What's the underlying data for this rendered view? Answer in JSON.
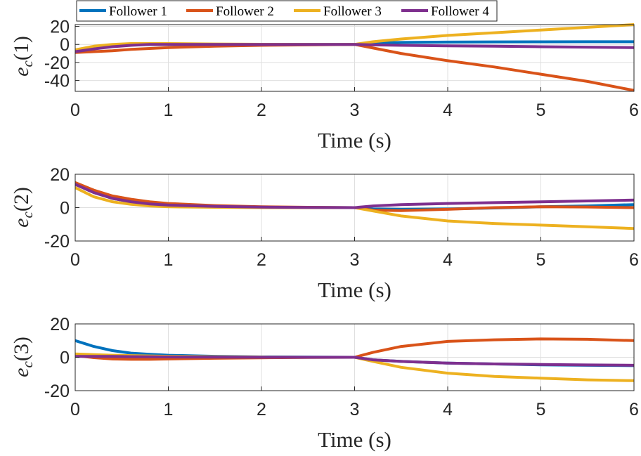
{
  "chart_data": [
    {
      "type": "line",
      "xlabel": "Time (s)",
      "ylabel": {
        "base": "e",
        "sub": "c",
        "arg": "(1)"
      },
      "xlim": [
        0,
        6
      ],
      "ylim": [
        -52,
        22
      ],
      "xticks": [
        "0",
        "1",
        "2",
        "3",
        "4",
        "5",
        "6"
      ],
      "yticks": [
        {
          "value": 20,
          "label": "20"
        },
        {
          "value": 0,
          "label": "0"
        },
        {
          "value": -20,
          "label": "-20"
        },
        {
          "value": -40,
          "label": "-40"
        }
      ],
      "grid": true,
      "series": [
        {
          "name": "Follower 1",
          "color": "#0072BD",
          "x": [
            0,
            0.2,
            0.4,
            0.6,
            0.8,
            1,
            1.5,
            2,
            2.5,
            3,
            3.2,
            3.5,
            4,
            4.5,
            5,
            5.5,
            6
          ],
          "y": [
            -7,
            -3.5,
            -1.5,
            -0.5,
            0,
            0,
            0,
            0,
            0,
            0,
            1.5,
            2.2,
            2.6,
            2.8,
            2.9,
            3,
            3
          ]
        },
        {
          "name": "Follower 2",
          "color": "#D95319",
          "x": [
            0,
            0.2,
            0.4,
            0.6,
            0.8,
            1,
            1.5,
            2,
            2.5,
            3,
            3.2,
            3.5,
            4,
            4.5,
            5,
            5.5,
            6
          ],
          "y": [
            -9,
            -8,
            -7,
            -5.5,
            -4.5,
            -3.5,
            -2,
            -1,
            -0.5,
            0,
            -4,
            -10,
            -18,
            -25,
            -33,
            -41,
            -51
          ]
        },
        {
          "name": "Follower 3",
          "color": "#EDB120",
          "x": [
            0,
            0.2,
            0.4,
            0.6,
            0.8,
            1,
            1.5,
            2,
            2.5,
            3,
            3.2,
            3.5,
            4,
            4.5,
            5,
            5.5,
            6
          ],
          "y": [
            -6,
            -2,
            0,
            1,
            1,
            1,
            0.5,
            0.2,
            0.1,
            0,
            3,
            6,
            10,
            13,
            16,
            19,
            22
          ]
        },
        {
          "name": "Follower 4",
          "color": "#7E2F8E",
          "x": [
            0,
            0.2,
            0.4,
            0.6,
            0.8,
            1,
            1.5,
            2,
            2.5,
            3,
            3.2,
            3.5,
            4,
            4.5,
            5,
            5.5,
            6
          ],
          "y": [
            -8,
            -5,
            -2.5,
            -1,
            0,
            0,
            0,
            0,
            0,
            0,
            -0.5,
            -1,
            -1.5,
            -2,
            -2.5,
            -3,
            -3.5
          ]
        }
      ]
    },
    {
      "type": "line",
      "xlabel": "Time (s)",
      "ylabel": {
        "base": "e",
        "sub": "c",
        "arg": "(2)"
      },
      "xlim": [
        0,
        6
      ],
      "ylim": [
        -20,
        20
      ],
      "xticks": [
        "0",
        "1",
        "2",
        "3",
        "4",
        "5",
        "6"
      ],
      "yticks": [
        {
          "value": 20,
          "label": "20"
        },
        {
          "value": 0,
          "label": "0"
        },
        {
          "value": -20,
          "label": "-20"
        }
      ],
      "grid": true,
      "series": [
        {
          "name": "Follower 1",
          "color": "#0072BD",
          "x": [
            0,
            0.2,
            0.4,
            0.6,
            0.8,
            1,
            1.5,
            2,
            2.5,
            3,
            3.2,
            3.5,
            4,
            4.5,
            5,
            5.5,
            6
          ],
          "y": [
            14,
            9,
            5.5,
            3.5,
            2,
            1.5,
            0.6,
            0.3,
            0.1,
            0,
            -0.8,
            -1,
            -0.8,
            -0.2,
            0.5,
            1,
            1.8
          ]
        },
        {
          "name": "Follower 2",
          "color": "#D95319",
          "x": [
            0,
            0.2,
            0.4,
            0.6,
            0.8,
            1,
            1.5,
            2,
            2.5,
            3,
            3.2,
            3.5,
            4,
            4.5,
            5,
            5.5,
            6
          ],
          "y": [
            15,
            10.5,
            7,
            5,
            3.5,
            2.5,
            1.2,
            0.5,
            0.2,
            0,
            -1.5,
            -1.8,
            -1,
            0,
            0.5,
            0.4,
            0
          ]
        },
        {
          "name": "Follower 3",
          "color": "#EDB120",
          "x": [
            0,
            0.2,
            0.4,
            0.6,
            0.8,
            1,
            1.5,
            2,
            2.5,
            3,
            3.2,
            3.5,
            4,
            4.5,
            5,
            5.5,
            6
          ],
          "y": [
            12,
            6.5,
            3.5,
            2,
            1,
            0.5,
            0.2,
            0,
            0,
            0,
            -2,
            -5,
            -8,
            -9.5,
            -10.5,
            -11.5,
            -12.5
          ]
        },
        {
          "name": "Follower 4",
          "color": "#7E2F8E",
          "x": [
            0,
            0.2,
            0.4,
            0.6,
            0.8,
            1,
            1.5,
            2,
            2.5,
            3,
            3.2,
            3.5,
            4,
            4.5,
            5,
            5.5,
            6
          ],
          "y": [
            14,
            9,
            5.5,
            3.5,
            2.2,
            1.5,
            0.7,
            0.3,
            0.1,
            0,
            1,
            1.8,
            2.5,
            3,
            3.5,
            4,
            4.5
          ]
        }
      ]
    },
    {
      "type": "line",
      "xlabel": "Time (s)",
      "ylabel": {
        "base": "e",
        "sub": "c",
        "arg": "(3)"
      },
      "xlim": [
        0,
        6
      ],
      "ylim": [
        -20,
        20
      ],
      "xticks": [
        "0",
        "1",
        "2",
        "3",
        "4",
        "5",
        "6"
      ],
      "yticks": [
        {
          "value": 20,
          "label": "20"
        },
        {
          "value": 0,
          "label": "0"
        },
        {
          "value": -20,
          "label": "-20"
        }
      ],
      "grid": true,
      "series": [
        {
          "name": "Follower 1",
          "color": "#0072BD",
          "x": [
            0,
            0.2,
            0.4,
            0.6,
            0.8,
            1,
            1.5,
            2,
            2.5,
            3,
            3.2,
            3.5,
            4,
            4.5,
            5,
            5.5,
            6
          ],
          "y": [
            10,
            6.5,
            4,
            2.5,
            1.8,
            1.2,
            0.6,
            0.2,
            0.1,
            0,
            -1.5,
            -2.5,
            -3.5,
            -4,
            -4.5,
            -4.8,
            -5
          ]
        },
        {
          "name": "Follower 2",
          "color": "#D95319",
          "x": [
            0,
            0.2,
            0.4,
            0.6,
            0.8,
            1,
            1.5,
            2,
            2.5,
            3,
            3.2,
            3.5,
            4,
            4.5,
            5,
            5.5,
            6
          ],
          "y": [
            1,
            -0.2,
            -1,
            -1.2,
            -1.2,
            -1,
            -0.6,
            -0.3,
            -0.1,
            0,
            3,
            6.5,
            9.5,
            10.5,
            11,
            10.8,
            10
          ]
        },
        {
          "name": "Follower 3",
          "color": "#EDB120",
          "x": [
            0,
            0.2,
            0.4,
            0.6,
            0.8,
            1,
            1.5,
            2,
            2.5,
            3,
            3.2,
            3.5,
            4,
            4.5,
            5,
            5.5,
            6
          ],
          "y": [
            2,
            1.6,
            1.2,
            1,
            0.8,
            0.6,
            0.3,
            0.1,
            0,
            0,
            -2.5,
            -6,
            -9.5,
            -11.5,
            -12.5,
            -13.5,
            -14
          ]
        },
        {
          "name": "Follower 4",
          "color": "#7E2F8E",
          "x": [
            0,
            0.2,
            0.4,
            0.6,
            0.8,
            1,
            1.5,
            2,
            2.5,
            3,
            3.2,
            3.5,
            4,
            4.5,
            5,
            5.5,
            6
          ],
          "y": [
            0.5,
            0.5,
            0.5,
            0.4,
            0.3,
            0.2,
            0.1,
            0,
            0,
            0,
            -1.5,
            -2.5,
            -3.5,
            -4,
            -4.3,
            -4.6,
            -4.8
          ]
        }
      ]
    }
  ],
  "legend": {
    "placement": "top",
    "entries": [
      "Follower 1",
      "Follower 2",
      "Follower 3",
      "Follower 4"
    ]
  }
}
